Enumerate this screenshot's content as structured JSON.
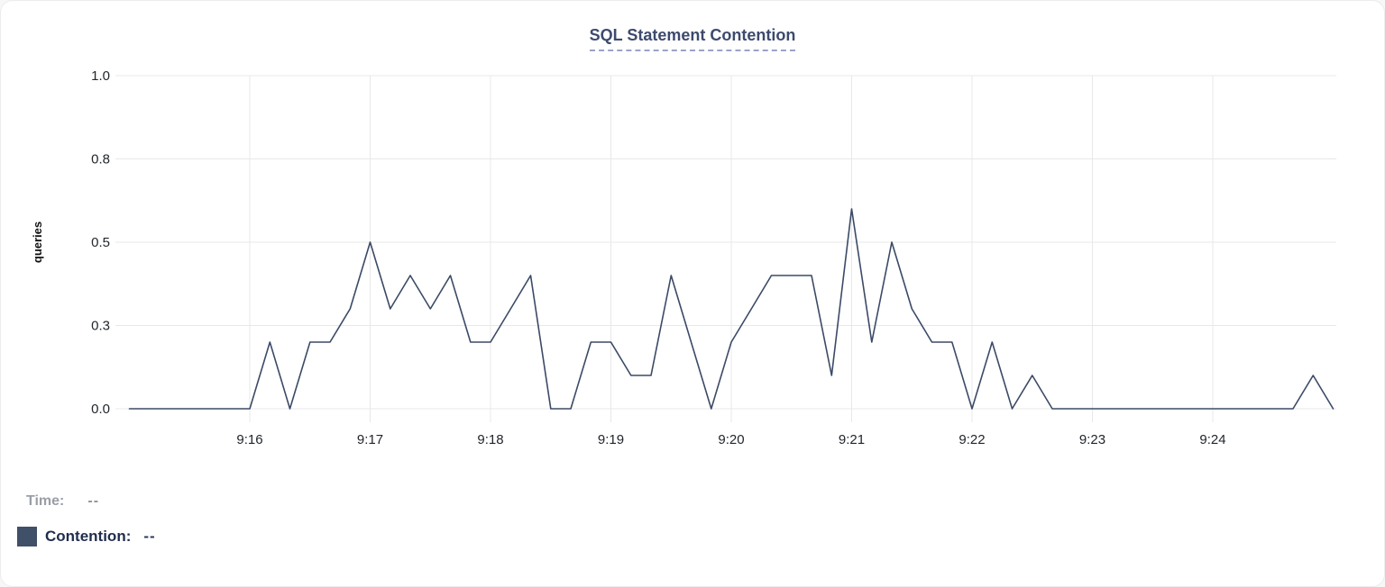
{
  "chart_data": {
    "type": "line",
    "title": "SQL Statement Contention",
    "xlabel": "",
    "ylabel": "queries",
    "ylim": [
      0,
      1
    ],
    "grid": true,
    "legend_position": "bottom-left",
    "x_start": "9:15:00",
    "x_end": "9:25:00",
    "x_interval_seconds": 10,
    "x_ticks": [
      "9:16",
      "9:17",
      "9:18",
      "9:19",
      "9:20",
      "9:21",
      "9:22",
      "9:23",
      "9:24"
    ],
    "y_ticks": [
      {
        "label": "0.0",
        "value": 0
      },
      {
        "label": "0.3",
        "value": 0.25
      },
      {
        "label": "0.5",
        "value": 0.5
      },
      {
        "label": "0.8",
        "value": 0.75
      },
      {
        "label": "1.0",
        "value": 1.0
      }
    ],
    "series": [
      {
        "name": "Contention",
        "color": "#3b4a66",
        "values": [
          0,
          0,
          0,
          0,
          0,
          0,
          0,
          0.2,
          0,
          0.2,
          0.2,
          0.3,
          0.5,
          0.3,
          0.4,
          0.3,
          0.4,
          0.2,
          0.2,
          0.3,
          0.4,
          0,
          0,
          0.2,
          0.2,
          0.1,
          0.1,
          0.4,
          0.2,
          0,
          0.2,
          0.3,
          0.4,
          0.4,
          0.4,
          0.1,
          0.6,
          0.2,
          0.5,
          0.3,
          0.2,
          0.2,
          0,
          0.2,
          0,
          0.1,
          0,
          0,
          0,
          0,
          0,
          0,
          0,
          0,
          0,
          0,
          0,
          0,
          0,
          0.1,
          0
        ]
      }
    ]
  },
  "legend": {
    "time_label": "Time:",
    "time_value": "--",
    "series_label": "Contention:",
    "series_value": "--",
    "swatch_color": "#3f5068"
  },
  "colors": {
    "title": "#3d4a6d",
    "title_underline": "#9aa3c9",
    "grid": "#e8e8e8",
    "tick_text": "#22262b",
    "line": "#3b4a66"
  }
}
